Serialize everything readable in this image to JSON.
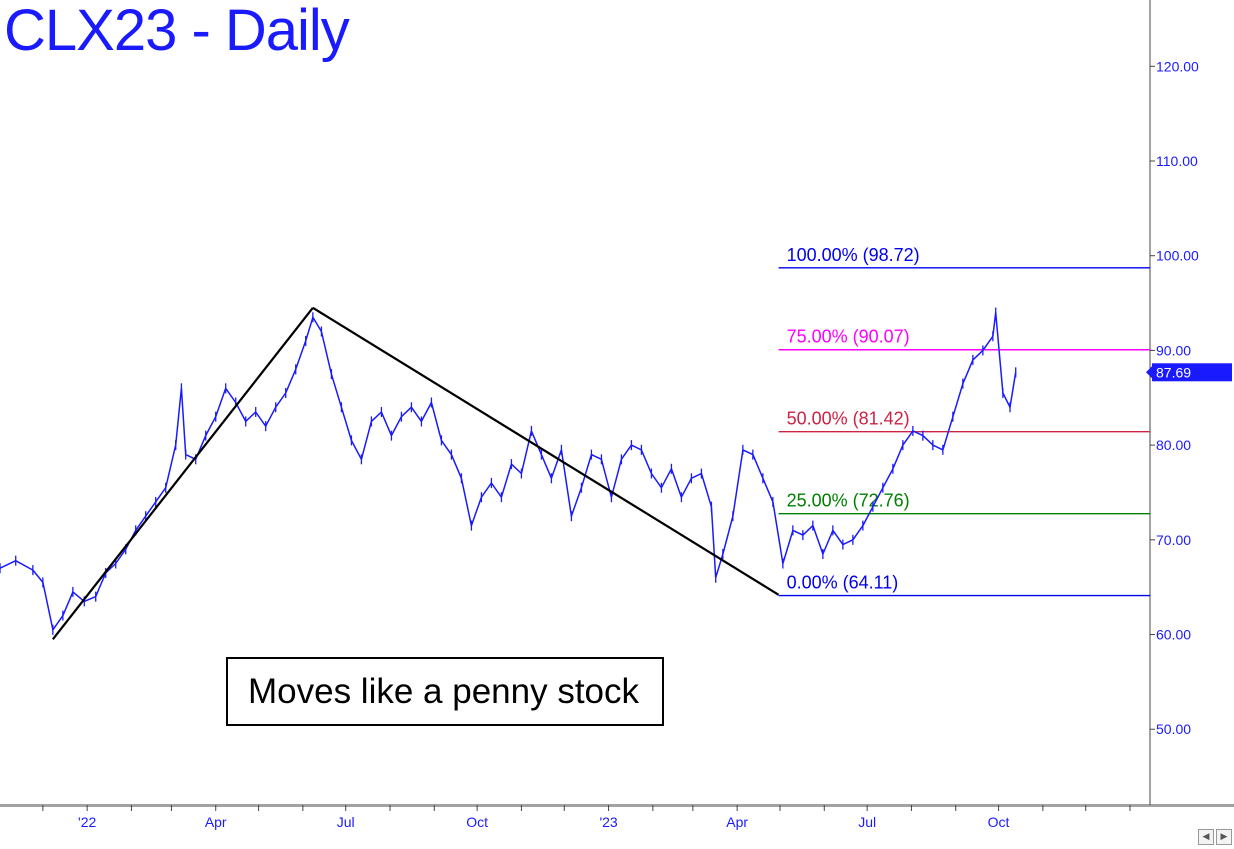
{
  "title": "CLX23 - Daily",
  "annotation": "Moves like a penny stock",
  "nav": {
    "left_icon": "triangle-left-icon",
    "right_icon": "triangle-right-icon"
  },
  "chart_data": {
    "type": "line",
    "title": "CLX23 - Daily",
    "xlabel": "",
    "ylabel": "",
    "ylim": [
      42,
      127
    ],
    "y_axis_position": "right",
    "y_ticks": [
      "50.00",
      "60.00",
      "70.00",
      "80.00",
      "90.00",
      "100.00",
      "110.00",
      "120.00"
    ],
    "x_ticks": [
      {
        "date": "2022-01-01",
        "label": "'22"
      },
      {
        "date": "2022-04-01",
        "label": "Apr"
      },
      {
        "date": "2022-07-01",
        "label": "Jul"
      },
      {
        "date": "2022-10-01",
        "label": "Oct"
      },
      {
        "date": "2023-01-01",
        "label": "'23"
      },
      {
        "date": "2023-04-01",
        "label": "Apr"
      },
      {
        "date": "2023-07-01",
        "label": "Jul"
      },
      {
        "date": "2023-10-01",
        "label": "Oct"
      }
    ],
    "last_price": {
      "label": "87.69",
      "value": 87.69,
      "color": "#1a1aff"
    },
    "price_color": "#1a1aff",
    "price_series": [
      [
        "2021-11-01",
        67.0
      ],
      [
        "2021-11-12",
        67.8
      ],
      [
        "2021-11-24",
        66.8
      ],
      [
        "2021-12-01",
        65.5
      ],
      [
        "2021-12-08",
        60.5
      ],
      [
        "2021-12-15",
        62.0
      ],
      [
        "2021-12-22",
        64.5
      ],
      [
        "2021-12-30",
        63.5
      ],
      [
        "2022-01-07",
        64.0
      ],
      [
        "2022-01-14",
        66.5
      ],
      [
        "2022-01-21",
        67.5
      ],
      [
        "2022-01-28",
        69.0
      ],
      [
        "2022-02-04",
        71.0
      ],
      [
        "2022-02-11",
        72.5
      ],
      [
        "2022-02-18",
        74.0
      ],
      [
        "2022-02-25",
        75.5
      ],
      [
        "2022-03-04",
        80.0
      ],
      [
        "2022-03-08",
        86.0
      ],
      [
        "2022-03-11",
        79.0
      ],
      [
        "2022-03-18",
        78.5
      ],
      [
        "2022-03-25",
        81.0
      ],
      [
        "2022-04-01",
        83.0
      ],
      [
        "2022-04-08",
        86.0
      ],
      [
        "2022-04-15",
        84.5
      ],
      [
        "2022-04-22",
        82.5
      ],
      [
        "2022-04-29",
        83.5
      ],
      [
        "2022-05-06",
        82.0
      ],
      [
        "2022-05-13",
        84.0
      ],
      [
        "2022-05-20",
        85.5
      ],
      [
        "2022-05-27",
        88.0
      ],
      [
        "2022-06-03",
        91.0
      ],
      [
        "2022-06-08",
        93.5
      ],
      [
        "2022-06-14",
        92.0
      ],
      [
        "2022-06-21",
        87.5
      ],
      [
        "2022-06-28",
        84.0
      ],
      [
        "2022-07-05",
        80.5
      ],
      [
        "2022-07-12",
        78.5
      ],
      [
        "2022-07-19",
        82.5
      ],
      [
        "2022-07-26",
        83.5
      ],
      [
        "2022-08-02",
        81.0
      ],
      [
        "2022-08-09",
        83.0
      ],
      [
        "2022-08-16",
        84.0
      ],
      [
        "2022-08-23",
        82.5
      ],
      [
        "2022-08-30",
        84.5
      ],
      [
        "2022-09-06",
        80.5
      ],
      [
        "2022-09-13",
        79.0
      ],
      [
        "2022-09-20",
        76.5
      ],
      [
        "2022-09-27",
        71.5
      ],
      [
        "2022-10-04",
        74.5
      ],
      [
        "2022-10-11",
        76.0
      ],
      [
        "2022-10-18",
        74.5
      ],
      [
        "2022-10-25",
        78.0
      ],
      [
        "2022-11-01",
        77.0
      ],
      [
        "2022-11-08",
        81.5
      ],
      [
        "2022-11-15",
        79.0
      ],
      [
        "2022-11-22",
        76.5
      ],
      [
        "2022-11-29",
        79.5
      ],
      [
        "2022-12-06",
        72.5
      ],
      [
        "2022-12-13",
        75.5
      ],
      [
        "2022-12-20",
        79.0
      ],
      [
        "2022-12-27",
        78.5
      ],
      [
        "2023-01-03",
        74.5
      ],
      [
        "2023-01-10",
        78.5
      ],
      [
        "2023-01-17",
        80.0
      ],
      [
        "2023-01-24",
        79.5
      ],
      [
        "2023-01-31",
        77.0
      ],
      [
        "2023-02-07",
        75.5
      ],
      [
        "2023-02-14",
        77.5
      ],
      [
        "2023-02-21",
        74.5
      ],
      [
        "2023-02-28",
        76.5
      ],
      [
        "2023-03-07",
        77.0
      ],
      [
        "2023-03-14",
        73.5
      ],
      [
        "2023-03-17",
        66.0
      ],
      [
        "2023-03-22",
        68.5
      ],
      [
        "2023-03-29",
        72.5
      ],
      [
        "2023-04-05",
        79.5
      ],
      [
        "2023-04-12",
        79.0
      ],
      [
        "2023-04-19",
        76.5
      ],
      [
        "2023-04-26",
        74.0
      ],
      [
        "2023-05-03",
        67.5
      ],
      [
        "2023-05-10",
        71.0
      ],
      [
        "2023-05-17",
        70.5
      ],
      [
        "2023-05-24",
        71.5
      ],
      [
        "2023-05-31",
        68.5
      ],
      [
        "2023-06-07",
        71.0
      ],
      [
        "2023-06-14",
        69.5
      ],
      [
        "2023-06-21",
        70.0
      ],
      [
        "2023-06-28",
        71.5
      ],
      [
        "2023-07-05",
        73.5
      ],
      [
        "2023-07-12",
        75.5
      ],
      [
        "2023-07-19",
        77.5
      ],
      [
        "2023-07-26",
        80.0
      ],
      [
        "2023-08-02",
        81.5
      ],
      [
        "2023-08-09",
        81.0
      ],
      [
        "2023-08-16",
        80.0
      ],
      [
        "2023-08-23",
        79.5
      ],
      [
        "2023-08-30",
        83.0
      ],
      [
        "2023-09-06",
        86.5
      ],
      [
        "2023-09-13",
        89.0
      ],
      [
        "2023-09-20",
        90.0
      ],
      [
        "2023-09-27",
        91.5
      ],
      [
        "2023-09-29",
        94.0
      ],
      [
        "2023-10-04",
        85.5
      ],
      [
        "2023-10-09",
        84.0
      ],
      [
        "2023-10-13",
        87.69
      ]
    ],
    "trend_lines": [
      {
        "color": "#000000",
        "points": [
          [
            "2021-12-08",
            59.5
          ],
          [
            "2022-06-08",
            94.5
          ]
        ]
      },
      {
        "color": "#000000",
        "points": [
          [
            "2022-06-08",
            94.5
          ],
          [
            "2023-04-30",
            64.2
          ]
        ]
      }
    ],
    "fib_levels": [
      {
        "label": "100.00% (98.72)",
        "value": 98.72,
        "color": "#0000ee"
      },
      {
        "label": "75.00% (90.07)",
        "value": 90.07,
        "color": "#ff00ff"
      },
      {
        "label": "50.00% (81.42)",
        "value": 81.42,
        "color": "#cc2244"
      },
      {
        "label": "25.00% (72.76)",
        "value": 72.76,
        "color": "#008000"
      },
      {
        "label": "0.00% (64.11)",
        "value": 64.11,
        "color": "#0000ee"
      }
    ],
    "fib_start_date": "2023-04-30",
    "x_range": [
      "2021-11-01",
      "2024-01-15"
    ]
  }
}
